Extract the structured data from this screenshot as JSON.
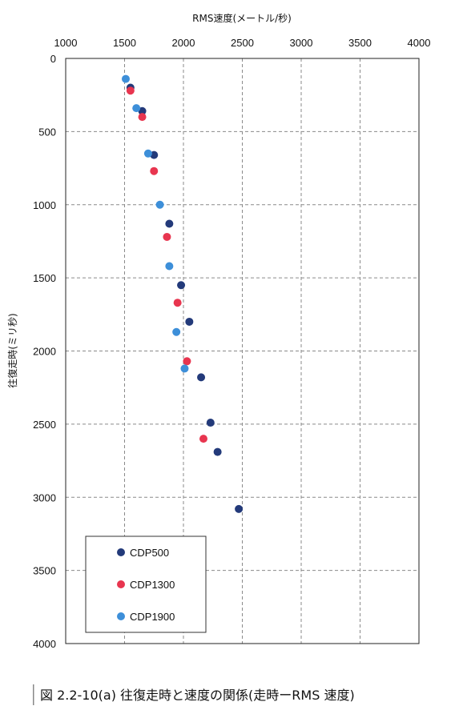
{
  "chart_data": {
    "type": "scatter",
    "title": "",
    "xlabel": "RMS速度(メートル/秒)",
    "ylabel": "往復走時(ミリ秒)",
    "xlim": [
      1000,
      4000
    ],
    "ylim": [
      0,
      4000
    ],
    "x_axis_position": "top",
    "y_axis_inverted": true,
    "x_ticks": [
      1000,
      1500,
      2000,
      2500,
      3000,
      3500,
      4000
    ],
    "y_ticks": [
      0,
      500,
      1000,
      1500,
      2000,
      2500,
      3000,
      3500,
      4000
    ],
    "grid": true,
    "grid_style": "dashed",
    "legend_position": "bottom-left",
    "series": [
      {
        "name": "CDP500",
        "color": "#233a7a",
        "points": [
          {
            "x": 1550,
            "y": 200
          },
          {
            "x": 1650,
            "y": 360
          },
          {
            "x": 1750,
            "y": 660
          },
          {
            "x": 1880,
            "y": 1130
          },
          {
            "x": 1980,
            "y": 1550
          },
          {
            "x": 2050,
            "y": 1800
          },
          {
            "x": 2150,
            "y": 2180
          },
          {
            "x": 2230,
            "y": 2490
          },
          {
            "x": 2290,
            "y": 2690
          },
          {
            "x": 2470,
            "y": 3080
          }
        ]
      },
      {
        "name": "CDP1300",
        "color": "#e8354f",
        "points": [
          {
            "x": 1550,
            "y": 220
          },
          {
            "x": 1650,
            "y": 400
          },
          {
            "x": 1750,
            "y": 770
          },
          {
            "x": 1860,
            "y": 1220
          },
          {
            "x": 1950,
            "y": 1670
          },
          {
            "x": 2030,
            "y": 2070
          },
          {
            "x": 2170,
            "y": 2600
          }
        ]
      },
      {
        "name": "CDP1900",
        "color": "#3d8fd9",
        "points": [
          {
            "x": 1510,
            "y": 140
          },
          {
            "x": 1600,
            "y": 340
          },
          {
            "x": 1700,
            "y": 650
          },
          {
            "x": 1800,
            "y": 1000
          },
          {
            "x": 1880,
            "y": 1420
          },
          {
            "x": 1940,
            "y": 1870
          },
          {
            "x": 2010,
            "y": 2120
          }
        ]
      }
    ]
  },
  "caption": "図 2.2-10(a) 往復走時と速度の関係(走時ーRMS 速度)"
}
